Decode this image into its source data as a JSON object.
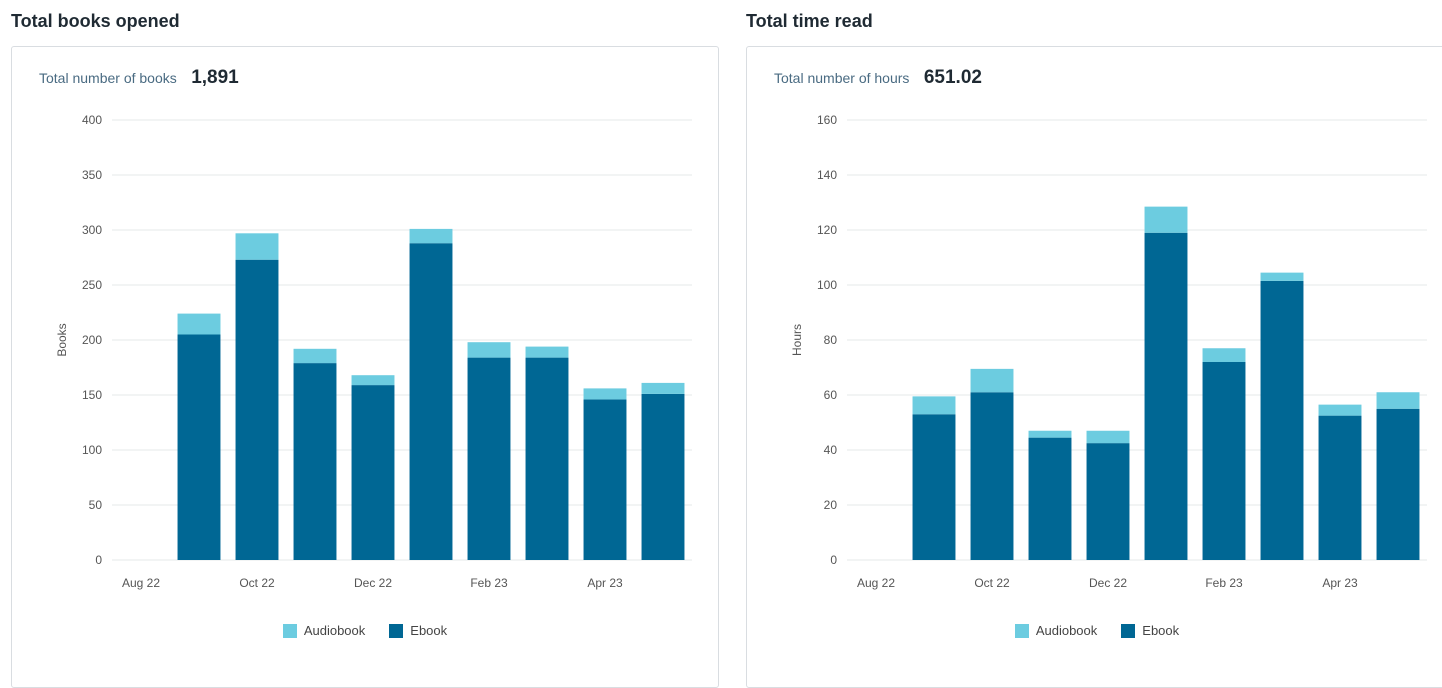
{
  "colors": {
    "audiobook": "#6ccce0",
    "ebook": "#006794",
    "grid": "#e6e8ea",
    "axis_text": "#555555"
  },
  "left": {
    "section_title": "Total books opened",
    "summary_label": "Total number of books",
    "summary_value": "1,891"
  },
  "right": {
    "section_title": "Total time read",
    "summary_label": "Total number of hours",
    "summary_value": "651.02"
  },
  "legend": {
    "audiobook": "Audiobook",
    "ebook": "Ebook"
  },
  "chart_data": [
    {
      "type": "bar",
      "stacked": true,
      "title": "Total books opened",
      "ylabel": "Books",
      "xlabel": "",
      "ylim": [
        0,
        400
      ],
      "yticks": [
        0,
        50,
        100,
        150,
        200,
        250,
        300,
        350,
        400
      ],
      "categories": [
        "Aug 22",
        "Sep 22",
        "Oct 22",
        "Nov 22",
        "Dec 22",
        "Jan 23",
        "Feb 23",
        "Mar 23",
        "Apr 23",
        "May 23"
      ],
      "xtick_labels": [
        "Aug 22",
        "",
        "Oct 22",
        "",
        "Dec 22",
        "",
        "Feb 23",
        "",
        "Apr 23",
        ""
      ],
      "series": [
        {
          "name": "Ebook",
          "values": [
            0,
            205,
            273,
            179,
            159,
            288,
            184,
            184,
            146,
            151
          ]
        },
        {
          "name": "Audiobook",
          "values": [
            0,
            19,
            24,
            13,
            9,
            13,
            14,
            10,
            10,
            10
          ]
        }
      ],
      "legend": "bottom-center",
      "grid": true
    },
    {
      "type": "bar",
      "stacked": true,
      "title": "Total time read",
      "ylabel": "Hours",
      "xlabel": "",
      "ylim": [
        0,
        160
      ],
      "yticks": [
        0,
        20,
        40,
        60,
        80,
        100,
        120,
        140,
        160
      ],
      "categories": [
        "Aug 22",
        "Sep 22",
        "Oct 22",
        "Nov 22",
        "Dec 22",
        "Jan 23",
        "Feb 23",
        "Mar 23",
        "Apr 23",
        "May 23"
      ],
      "xtick_labels": [
        "Aug 22",
        "",
        "Oct 22",
        "",
        "Dec 22",
        "",
        "Feb 23",
        "",
        "Apr 23",
        ""
      ],
      "series": [
        {
          "name": "Ebook",
          "values": [
            0,
            53,
            61,
            44.5,
            42.5,
            119,
            72,
            101.5,
            52.5,
            55
          ]
        },
        {
          "name": "Audiobook",
          "values": [
            0,
            6.5,
            8.5,
            2.5,
            4.5,
            9.5,
            5,
            3,
            4,
            6
          ]
        }
      ],
      "legend": "bottom-center",
      "grid": true
    }
  ]
}
